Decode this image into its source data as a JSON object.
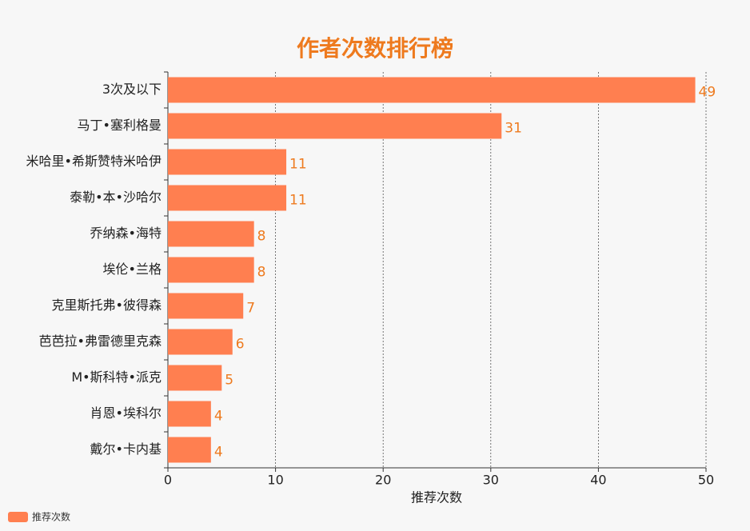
{
  "chart_data": {
    "type": "barh",
    "title": "作者次数排行榜",
    "categories": [
      "3次及以下",
      "马丁•塞利格曼",
      "米哈里•希斯赞特米哈伊",
      "泰勒•本•沙哈尔",
      "乔纳森•海特",
      "埃伦•兰格",
      "克里斯托弗•彼得森",
      "芭芭拉•弗雷德里克森",
      "M•斯科特•派克",
      "肖恩•埃科尔",
      "戴尔•卡内基"
    ],
    "series": [
      {
        "name": "推荐次数",
        "color": "#ff7f50",
        "values": [
          49,
          31,
          11,
          11,
          8,
          8,
          7,
          6,
          5,
          4,
          4
        ]
      }
    ],
    "x_label": "推荐次数",
    "xlim": [
      0,
      50
    ],
    "xticks": [
      0,
      10,
      20,
      30,
      40,
      50
    ],
    "grid": true,
    "legend": "bottom-left",
    "label_color": "#ee7a1e"
  }
}
